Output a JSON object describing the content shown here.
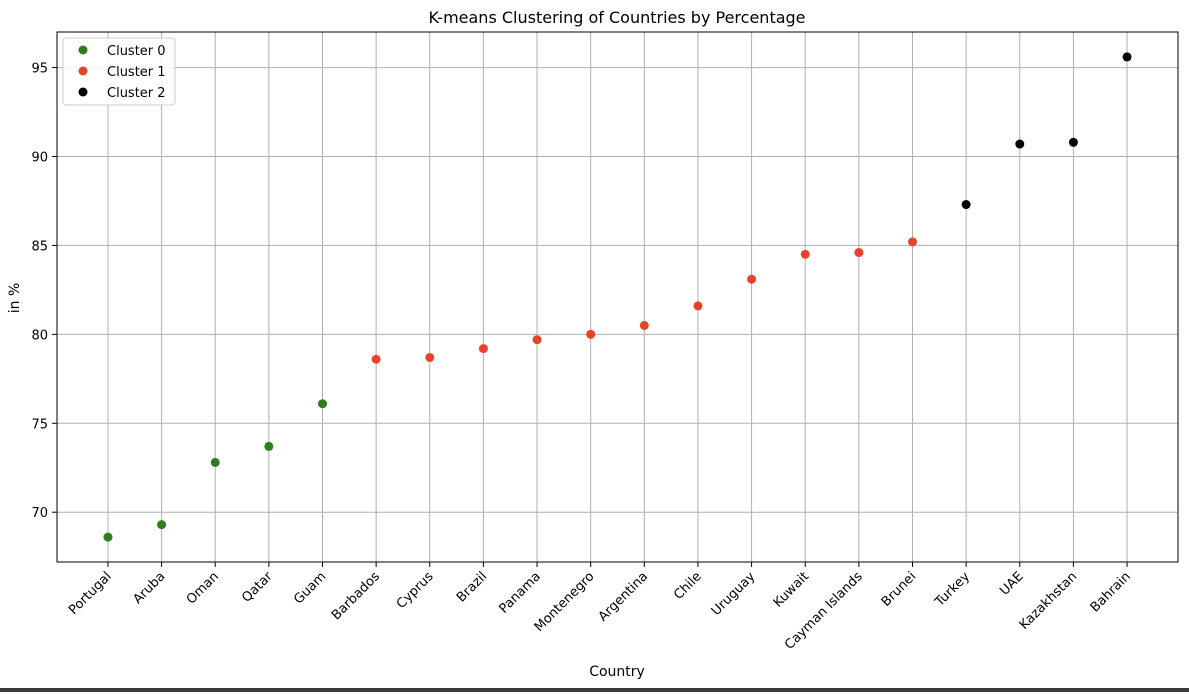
{
  "chart_data": {
    "type": "scatter",
    "title": "K-means Clustering of Countries by Percentage",
    "xlabel": "Country",
    "ylabel": "in %",
    "categories": [
      "Portugal",
      "Aruba",
      "Oman",
      "Qatar",
      "Guam",
      "Barbados",
      "Cyprus",
      "Brazil",
      "Panama",
      "Montenegro",
      "Argentina",
      "Chile",
      "Uruguay",
      "Kuwait",
      "Cayman Islands",
      "Brunei",
      "Turkey",
      "UAE",
      "Kazakhstan",
      "Bahrain"
    ],
    "ylim": [
      67.2,
      97.0
    ],
    "yticks": [
      70,
      75,
      80,
      85,
      90,
      95
    ],
    "grid": true,
    "legend_position": "upper-left",
    "series": [
      {
        "name": "Cluster 0",
        "color": "#2f7d1c",
        "points": [
          [
            "Portugal",
            68.6
          ],
          [
            "Aruba",
            69.3
          ],
          [
            "Oman",
            72.8
          ],
          [
            "Qatar",
            73.7
          ],
          [
            "Guam",
            76.1
          ]
        ]
      },
      {
        "name": "Cluster 1",
        "color": "#e8432a",
        "points": [
          [
            "Barbados",
            78.6
          ],
          [
            "Cyprus",
            78.7
          ],
          [
            "Brazil",
            79.2
          ],
          [
            "Panama",
            79.7
          ],
          [
            "Montenegro",
            80.0
          ],
          [
            "Argentina",
            80.5
          ],
          [
            "Chile",
            81.6
          ],
          [
            "Uruguay",
            83.1
          ],
          [
            "Kuwait",
            84.5
          ],
          [
            "Cayman Islands",
            84.6
          ],
          [
            "Brunei",
            85.2
          ]
        ]
      },
      {
        "name": "Cluster 2",
        "color": "#000000",
        "points": [
          [
            "Turkey",
            87.3
          ],
          [
            "UAE",
            90.7
          ],
          [
            "Kazakhstan",
            90.8
          ],
          [
            "Bahrain",
            95.6
          ]
        ]
      }
    ]
  }
}
